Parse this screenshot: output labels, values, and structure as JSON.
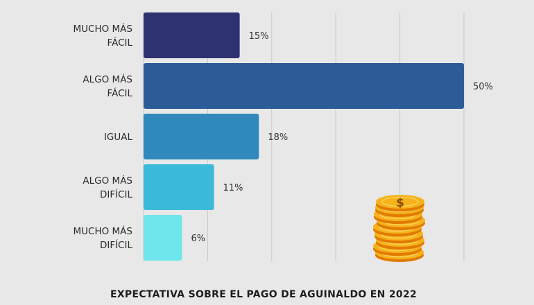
{
  "chart_data": {
    "type": "bar",
    "orientation": "horizontal",
    "title": "EXPECTATIVA SOBRE EL PAGO DE AGUINALDO EN 2022",
    "categories": [
      [
        "MUCHO MÁS",
        "FÁCIL"
      ],
      [
        "ALGO MÁS",
        "FÁCIL"
      ],
      [
        "IGUAL"
      ],
      [
        "ALGO MÁS",
        "DIFÍCIL"
      ],
      [
        "MUCHO MÁS",
        "DIFÍCIL"
      ]
    ],
    "values": [
      15,
      50,
      18,
      11,
      6
    ],
    "value_labels": [
      "15%",
      "50%",
      "18%",
      "11%",
      "6%"
    ],
    "colors": [
      "#2e3270",
      "#2c5c97",
      "#2f89bd",
      "#3bbad9",
      "#6fe5ec"
    ],
    "xlim": [
      0,
      50
    ],
    "grid": true
  },
  "decoration": {
    "icon": "coin-stack-icon",
    "symbol": "$"
  }
}
